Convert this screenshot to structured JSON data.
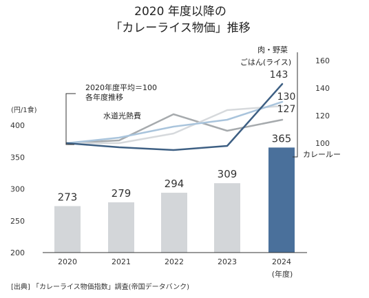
{
  "chart_data": {
    "type": "bar+line",
    "title_lines": [
      "2020 年度以降の",
      "「カレーライス物価」推移"
    ],
    "left_axis": {
      "unit": "(円/1食)",
      "ticks": [
        200,
        250,
        300,
        350,
        400
      ],
      "ylim": [
        200,
        400
      ]
    },
    "right_axis": {
      "ticks": [
        100,
        120,
        140,
        160
      ],
      "ylim": [
        100,
        160
      ]
    },
    "x_tick_labels": [
      "2020",
      "2021",
      "2022",
      "2023",
      "2024"
    ],
    "x_sub_label": "(年度)",
    "bars": {
      "name": "カレールー価格",
      "values": [
        273,
        279,
        294,
        309,
        365
      ],
      "labels": [
        "273",
        "279",
        "294",
        "309",
        "365"
      ],
      "color": "#d3d6d9",
      "highlight_color": "#4a709b"
    },
    "lines": [
      {
        "name": "肉・野菜",
        "values": [
          100,
          102,
          121,
          109,
          117
        ],
        "color": "#a6aaad"
      },
      {
        "name": "ごはん(ライス)",
        "values": [
          100,
          100,
          107,
          124,
          127
        ],
        "color": "#d6d9dc"
      },
      {
        "name": "",
        "values": [
          100,
          104,
          112,
          117,
          130
        ],
        "color": "#a9c4dc"
      },
      {
        "name": "カレールー",
        "values": [
          100,
          97,
          95,
          98,
          143
        ],
        "color": "#3d5f83"
      }
    ],
    "series_labels": [
      {
        "text": "肉・野菜"
      },
      {
        "text": "ごはん(ライス)"
      },
      {
        "text": "水道光熱費"
      },
      {
        "text": "カレールー"
      }
    ],
    "end_values": [
      "143",
      "130",
      "127"
    ],
    "baseline_note": [
      "2020年度平均＝100",
      "各年度推移"
    ],
    "source": "[出典] 「カレーライス物価指数」調査(帝国データバンク)"
  }
}
